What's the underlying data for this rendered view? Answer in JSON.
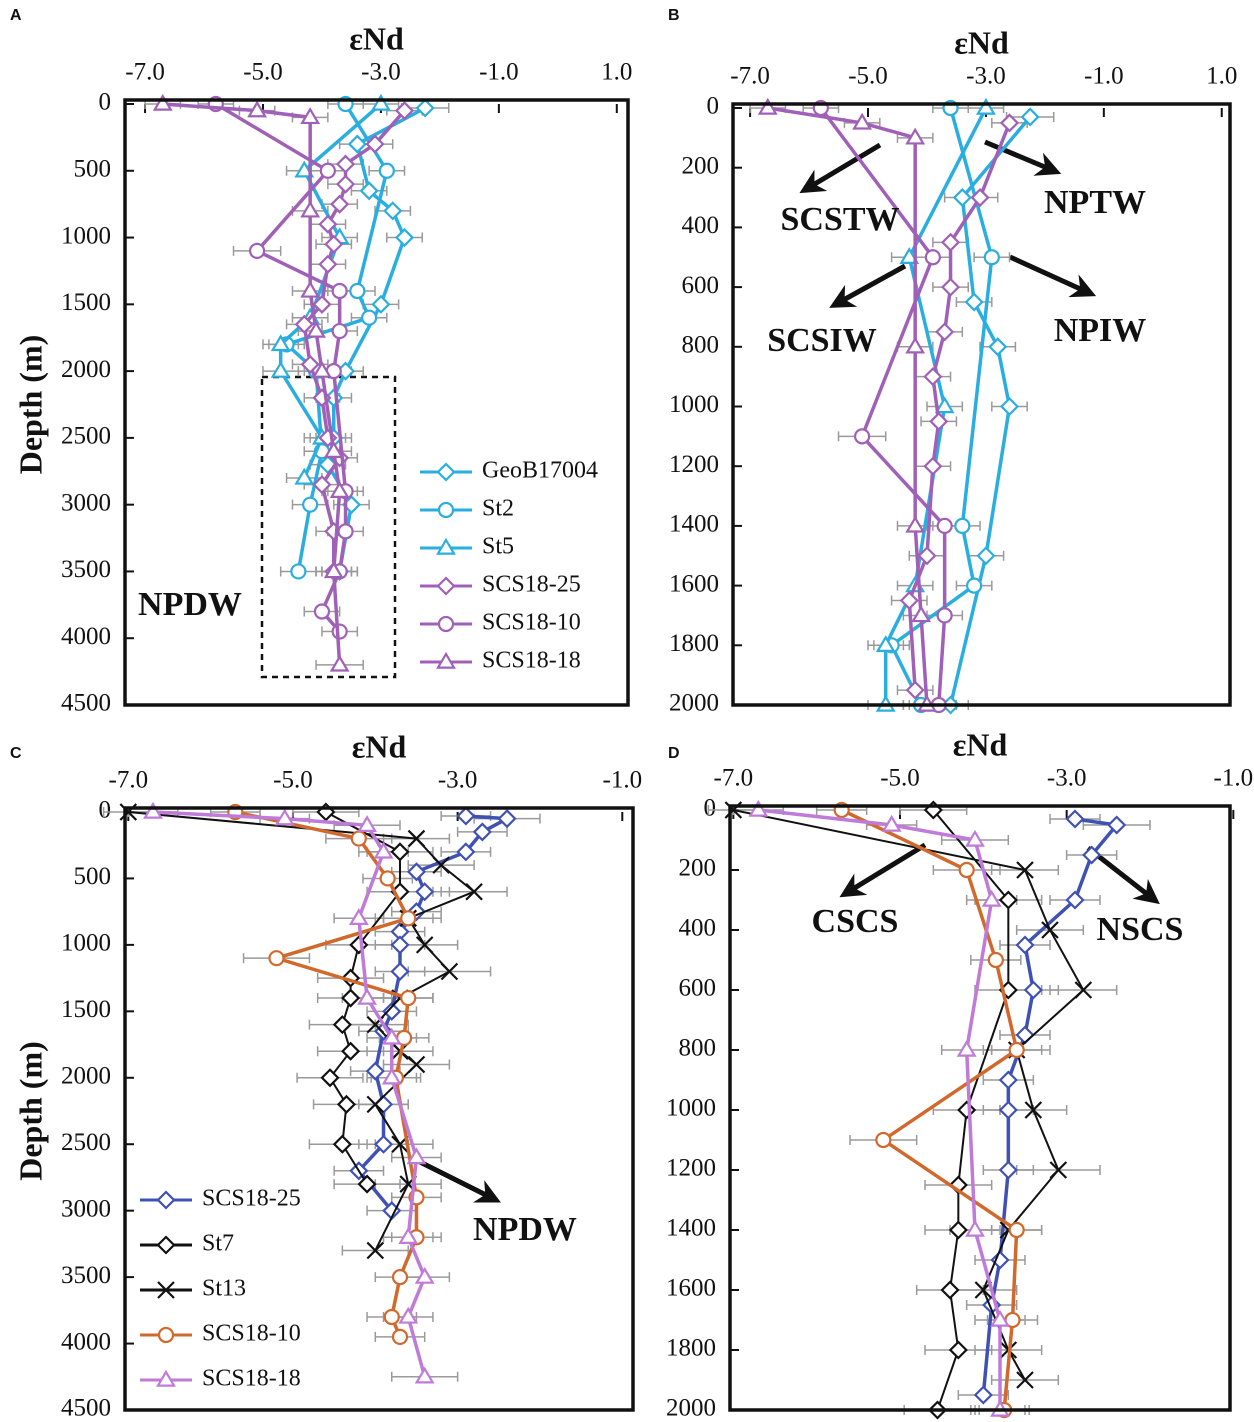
{
  "chart_data": [
    {
      "type": "line",
      "panel": "A",
      "title": "εNd",
      "y_label": "Depth (m)",
      "xlim": [
        -7.34,
        1.19
      ],
      "xticks": [
        {
          "value": -7,
          "label": "-7.0"
        },
        {
          "value": -5,
          "label": "-5.0"
        },
        {
          "value": -3,
          "label": "-3.0"
        },
        {
          "value": -1,
          "label": "-1.0"
        },
        {
          "value": 1,
          "label": "1.0"
        }
      ],
      "ylim": [
        0,
        4500
      ],
      "yticks": [
        0,
        500,
        1000,
        1500,
        2000,
        2500,
        3000,
        3500,
        4000,
        4500
      ],
      "y_inverted": true,
      "legend": "right",
      "annotations": [
        "NPDW"
      ],
      "series": [
        {
          "name": "GeoB17004",
          "color": "#2aaee0",
          "marker": "diamond",
          "depth": [
            30,
            300,
            650,
            800,
            1000,
            1500,
            2000,
            2200,
            2500,
            2700,
            3000,
            3500
          ],
          "values": [
            -2.25,
            -3.4,
            -3.2,
            -2.8,
            -2.6,
            -3.0,
            -3.6,
            -3.8,
            -3.8,
            -3.9,
            -3.5,
            -3.7
          ],
          "errors": [
            0.4,
            0.3,
            0.3,
            0.3,
            0.3,
            0.3,
            0.3,
            0.3,
            0.3,
            0.3,
            0.3,
            0.3
          ]
        },
        {
          "name": "St2",
          "color": "#2aaee0",
          "marker": "circle",
          "depth": [
            0,
            500,
            1400,
            1600,
            1800,
            2000,
            2600,
            3000,
            3500
          ],
          "values": [
            -3.6,
            -2.9,
            -3.4,
            -3.2,
            -4.6,
            -4.1,
            -4.0,
            -4.2,
            -4.4
          ],
          "errors": [
            0.3,
            0.3,
            0.3,
            0.3,
            0.3,
            0.3,
            0.3,
            0.3,
            0.3
          ]
        },
        {
          "name": "St5",
          "color": "#2aaee0",
          "marker": "triangle",
          "depth": [
            0,
            500,
            1000,
            1600,
            1800,
            2000,
            2500,
            2800
          ],
          "values": [
            -3.0,
            -4.3,
            -3.7,
            -4.2,
            -4.7,
            -4.7,
            -4.0,
            -4.3
          ],
          "errors": [
            0.3,
            0.3,
            0.3,
            0.3,
            0.3,
            0.3,
            0.3,
            0.3
          ]
        },
        {
          "name": "SCS18-25",
          "color": "#a060b8",
          "marker": "diamond",
          "depth": [
            50,
            300,
            450,
            600,
            750,
            900,
            1050,
            1200,
            1500,
            1650,
            1950,
            2200,
            2500,
            2650,
            2850,
            3200,
            3500
          ],
          "values": [
            -2.6,
            -3.1,
            -3.6,
            -3.6,
            -3.7,
            -3.9,
            -3.8,
            -3.9,
            -4.0,
            -4.3,
            -4.2,
            -4.0,
            -3.9,
            -3.7,
            -4.0,
            -3.8,
            -3.8
          ],
          "errors": [
            0.3,
            0.3,
            0.3,
            0.3,
            0.3,
            0.3,
            0.3,
            0.3,
            0.3,
            0.3,
            0.3,
            0.3,
            0.3,
            0.3,
            0.3,
            0.3,
            0.3
          ]
        },
        {
          "name": "SCS18-10",
          "color": "#a060b8",
          "marker": "circle",
          "depth": [
            0,
            500,
            1100,
            1400,
            1700,
            2000,
            2900,
            3200,
            3500,
            3800,
            3950
          ],
          "values": [
            -5.8,
            -3.9,
            -5.1,
            -3.7,
            -3.7,
            -3.8,
            -3.6,
            -3.6,
            -3.7,
            -4.0,
            -3.7
          ],
          "errors": [
            0.3,
            0.3,
            0.4,
            0.3,
            0.3,
            0.3,
            0.3,
            0.3,
            0.3,
            0.3,
            0.3
          ]
        },
        {
          "name": "SCS18-18",
          "color": "#a060b8",
          "marker": "triangle",
          "depth": [
            0,
            50,
            100,
            800,
            1400,
            1700,
            2000,
            2600,
            2900,
            3500,
            4200
          ],
          "values": [
            -6.7,
            -5.1,
            -4.2,
            -4.2,
            -4.2,
            -4.1,
            -4.0,
            -3.8,
            -3.7,
            -3.8,
            -3.7
          ],
          "errors": [
            0.3,
            0.3,
            0.3,
            0.3,
            0.3,
            0.3,
            0.3,
            0.3,
            0.3,
            0.3,
            0.4
          ]
        }
      ]
    },
    {
      "type": "line",
      "panel": "B",
      "title": "εNd",
      "xlim": [
        -7.29,
        1.14
      ],
      "xticks": [
        {
          "value": -7,
          "label": "-7.0"
        },
        {
          "value": -5,
          "label": "-5.0"
        },
        {
          "value": -3,
          "label": "-3.0"
        },
        {
          "value": -1,
          "label": "-1.0"
        },
        {
          "value": 1,
          "label": "1.0"
        }
      ],
      "ylim": [
        0,
        2000
      ],
      "yticks": [
        0,
        200,
        400,
        600,
        800,
        1000,
        1200,
        1400,
        1600,
        1800,
        2000
      ],
      "y_inverted": true,
      "annotations": [
        "SCSTW",
        "NPTW",
        "SCSIW",
        "NPIW"
      ],
      "series": [
        {
          "color": "#2aaee0",
          "marker": "diamond",
          "depth": [
            30,
            300,
            650,
            800,
            1000,
            1500,
            2000
          ],
          "values": [
            -2.25,
            -3.4,
            -3.2,
            -2.8,
            -2.6,
            -3.0,
            -3.6
          ],
          "errors": [
            0.4,
            0.3,
            0.3,
            0.3,
            0.3,
            0.3,
            0.3
          ]
        },
        {
          "color": "#2aaee0",
          "marker": "circle",
          "depth": [
            0,
            500,
            1400,
            1600,
            1800,
            2000
          ],
          "values": [
            -3.6,
            -2.9,
            -3.4,
            -3.2,
            -4.6,
            -4.1
          ],
          "errors": [
            0.3,
            0.3,
            0.3,
            0.3,
            0.3,
            0.3
          ]
        },
        {
          "color": "#2aaee0",
          "marker": "triangle",
          "depth": [
            0,
            500,
            1000,
            1600,
            1800,
            2000
          ],
          "values": [
            -3.0,
            -4.3,
            -3.7,
            -4.2,
            -4.7,
            -4.7
          ],
          "errors": [
            0.3,
            0.3,
            0.3,
            0.3,
            0.3,
            0.3
          ]
        },
        {
          "color": "#a060b8",
          "marker": "diamond",
          "depth": [
            50,
            300,
            450,
            600,
            750,
            900,
            1050,
            1200,
            1500,
            1650,
            1950
          ],
          "values": [
            -2.6,
            -3.1,
            -3.6,
            -3.6,
            -3.7,
            -3.9,
            -3.8,
            -3.9,
            -4.0,
            -4.3,
            -4.2
          ],
          "errors": [
            0.3,
            0.3,
            0.3,
            0.3,
            0.3,
            0.3,
            0.3,
            0.3,
            0.3,
            0.3,
            0.3
          ]
        },
        {
          "color": "#a060b8",
          "marker": "circle",
          "depth": [
            0,
            500,
            1100,
            1400,
            1700,
            2000
          ],
          "values": [
            -5.8,
            -3.9,
            -5.1,
            -3.7,
            -3.7,
            -3.8
          ],
          "errors": [
            0.3,
            0.3,
            0.4,
            0.3,
            0.3,
            0.3
          ]
        },
        {
          "color": "#a060b8",
          "marker": "triangle",
          "depth": [
            0,
            50,
            100,
            800,
            1400,
            1700,
            2000
          ],
          "values": [
            -6.7,
            -5.1,
            -4.2,
            -4.2,
            -4.2,
            -4.1,
            -4.0
          ],
          "errors": [
            0.3,
            0.3,
            0.3,
            0.3,
            0.3,
            0.3,
            0.3
          ]
        }
      ]
    },
    {
      "type": "line",
      "panel": "C",
      "title": "εNd",
      "y_label": "Depth (m)",
      "xlim": [
        -7.04,
        -0.87
      ],
      "xticks": [
        {
          "value": -7,
          "label": "-7.0"
        },
        {
          "value": -5,
          "label": "-5.0"
        },
        {
          "value": -3,
          "label": "-3.0"
        },
        {
          "value": -1,
          "label": "-1.0"
        }
      ],
      "ylim": [
        0,
        4500
      ],
      "yticks": [
        0,
        500,
        1000,
        1500,
        2000,
        2500,
        3000,
        3500,
        4000,
        4500
      ],
      "y_inverted": true,
      "legend": "lower left",
      "annotations": [
        "NPDW"
      ],
      "series": [
        {
          "name": "SCS18-25",
          "color": "#3f51b5",
          "marker": "diamond",
          "depth": [
            30,
            50,
            150,
            300,
            450,
            600,
            750,
            900,
            1000,
            1200,
            1500,
            1650,
            1950,
            2200,
            2500,
            2700,
            3000
          ],
          "values": [
            -2.9,
            -2.4,
            -2.7,
            -2.9,
            -3.5,
            -3.4,
            -3.5,
            -3.7,
            -3.7,
            -3.7,
            -3.8,
            -3.9,
            -4.0,
            -3.9,
            -3.9,
            -4.2,
            -3.8
          ],
          "errors": [
            0.3,
            0.4,
            0.3,
            0.3,
            0.3,
            0.3,
            0.3,
            0.3,
            0.3,
            0.3,
            0.3,
            0.3,
            0.3,
            0.3,
            0.3,
            0.3,
            0.3
          ]
        },
        {
          "name": "St7",
          "color": "#111111",
          "marker": "diamond",
          "depth": [
            0,
            300,
            600,
            1000,
            1250,
            1400,
            1600,
            1800,
            2000,
            2200,
            2500,
            2800
          ],
          "values": [
            -4.6,
            -3.7,
            -3.7,
            -4.2,
            -4.3,
            -4.3,
            -4.4,
            -4.3,
            -4.55,
            -4.35,
            -4.4,
            -4.1
          ],
          "errors": [
            0.4,
            0.4,
            0.4,
            0.4,
            0.4,
            0.4,
            0.4,
            0.4,
            0.4,
            0.4,
            0.4,
            0.4
          ]
        },
        {
          "name": "St13",
          "color": "#111111",
          "marker": "x",
          "depth": [
            0,
            200,
            400,
            600,
            800,
            1000,
            1200,
            1400,
            1600,
            1800,
            1900,
            2200,
            2500,
            2800,
            3300
          ],
          "values": [
            -7.0,
            -3.5,
            -3.2,
            -2.8,
            -3.6,
            -3.4,
            -3.1,
            -3.7,
            -4.0,
            -3.7,
            -3.5,
            -4.0,
            -3.7,
            -3.6,
            -4.0
          ],
          "errors": [
            0.3,
            0.4,
            0.4,
            0.4,
            0.4,
            0.4,
            0.5,
            0.4,
            0.4,
            0.4,
            0.4,
            0.4,
            0.4,
            0.4,
            0.4
          ]
        },
        {
          "name": "SCS18-10",
          "color": "#d2692c",
          "marker": "circle",
          "depth": [
            0,
            200,
            500,
            800,
            1100,
            1400,
            1700,
            2000,
            2900,
            3200,
            3500,
            3800,
            3950
          ],
          "values": [
            -5.7,
            -4.2,
            -3.85,
            -3.6,
            -5.2,
            -3.6,
            -3.65,
            -3.75,
            -3.5,
            -3.5,
            -3.7,
            -3.8,
            -3.7
          ],
          "errors": [
            0.3,
            0.4,
            0.3,
            0.3,
            0.4,
            0.3,
            0.3,
            0.3,
            0.3,
            0.3,
            0.3,
            0.3,
            0.3
          ]
        },
        {
          "name": "SCS18-18",
          "color": "#c07ad8",
          "marker": "triangle",
          "depth": [
            0,
            50,
            100,
            300,
            800,
            1400,
            1700,
            2000,
            2600,
            3200,
            3500,
            3800,
            4250
          ],
          "values": [
            -6.7,
            -5.1,
            -4.1,
            -3.9,
            -4.2,
            -4.1,
            -3.8,
            -3.8,
            -3.5,
            -3.6,
            -3.4,
            -3.6,
            -3.4
          ],
          "errors": [
            0.3,
            0.3,
            0.4,
            0.3,
            0.3,
            0.3,
            0.3,
            0.3,
            0.3,
            0.3,
            0.3,
            0.3,
            0.4
          ]
        }
      ]
    },
    {
      "type": "line",
      "panel": "D",
      "title": "εNd",
      "xlim": [
        -7.04,
        -1.04
      ],
      "xticks": [
        {
          "value": -7,
          "label": "-7.0"
        },
        {
          "value": -5,
          "label": "-5.0"
        },
        {
          "value": -3,
          "label": "-3.0"
        },
        {
          "value": -1,
          "label": "-1.0"
        }
      ],
      "ylim": [
        0,
        2000
      ],
      "yticks": [
        0,
        200,
        400,
        600,
        800,
        1000,
        1200,
        1400,
        1600,
        1800,
        2000
      ],
      "y_inverted": true,
      "annotations": [
        "CSCS",
        "NSCS"
      ],
      "series": [
        {
          "color": "#3f51b5",
          "marker": "diamond",
          "depth": [
            30,
            50,
            150,
            300,
            450,
            600,
            750,
            900,
            1000,
            1200,
            1500,
            1650,
            1950
          ],
          "values": [
            -2.9,
            -2.4,
            -2.7,
            -2.9,
            -3.5,
            -3.4,
            -3.5,
            -3.7,
            -3.7,
            -3.7,
            -3.8,
            -3.9,
            -4.0
          ],
          "errors": [
            0.3,
            0.4,
            0.3,
            0.3,
            0.3,
            0.3,
            0.3,
            0.3,
            0.3,
            0.3,
            0.3,
            0.3,
            0.3
          ]
        },
        {
          "color": "#111111",
          "marker": "diamond",
          "depth": [
            0,
            300,
            600,
            1000,
            1250,
            1400,
            1600,
            1800,
            2000
          ],
          "values": [
            -4.6,
            -3.7,
            -3.7,
            -4.2,
            -4.3,
            -4.3,
            -4.4,
            -4.3,
            -4.55
          ],
          "errors": [
            0.4,
            0.4,
            0.4,
            0.4,
            0.4,
            0.4,
            0.4,
            0.4,
            0.4
          ]
        },
        {
          "color": "#111111",
          "marker": "x",
          "depth": [
            0,
            200,
            400,
            600,
            800,
            1000,
            1200,
            1400,
            1600,
            1800,
            1900
          ],
          "values": [
            -7.0,
            -3.5,
            -3.2,
            -2.8,
            -3.6,
            -3.4,
            -3.1,
            -3.7,
            -4.0,
            -3.7,
            -3.5
          ],
          "errors": [
            0.3,
            0.4,
            0.4,
            0.4,
            0.4,
            0.4,
            0.5,
            0.4,
            0.4,
            0.4,
            0.4
          ]
        },
        {
          "color": "#d2692c",
          "marker": "circle",
          "depth": [
            0,
            200,
            500,
            800,
            1100,
            1400,
            1700,
            2000
          ],
          "values": [
            -5.7,
            -4.2,
            -3.85,
            -3.6,
            -5.2,
            -3.6,
            -3.65,
            -3.75
          ],
          "errors": [
            0.3,
            0.4,
            0.3,
            0.3,
            0.4,
            0.3,
            0.3,
            0.3
          ]
        },
        {
          "color": "#c07ad8",
          "marker": "triangle",
          "depth": [
            0,
            50,
            100,
            300,
            800,
            1400,
            1700,
            2000
          ],
          "values": [
            -6.7,
            -5.1,
            -4.1,
            -3.9,
            -4.2,
            -4.1,
            -3.8,
            -3.8
          ],
          "errors": [
            0.3,
            0.3,
            0.4,
            0.3,
            0.3,
            0.3,
            0.3,
            0.3
          ]
        }
      ]
    }
  ]
}
